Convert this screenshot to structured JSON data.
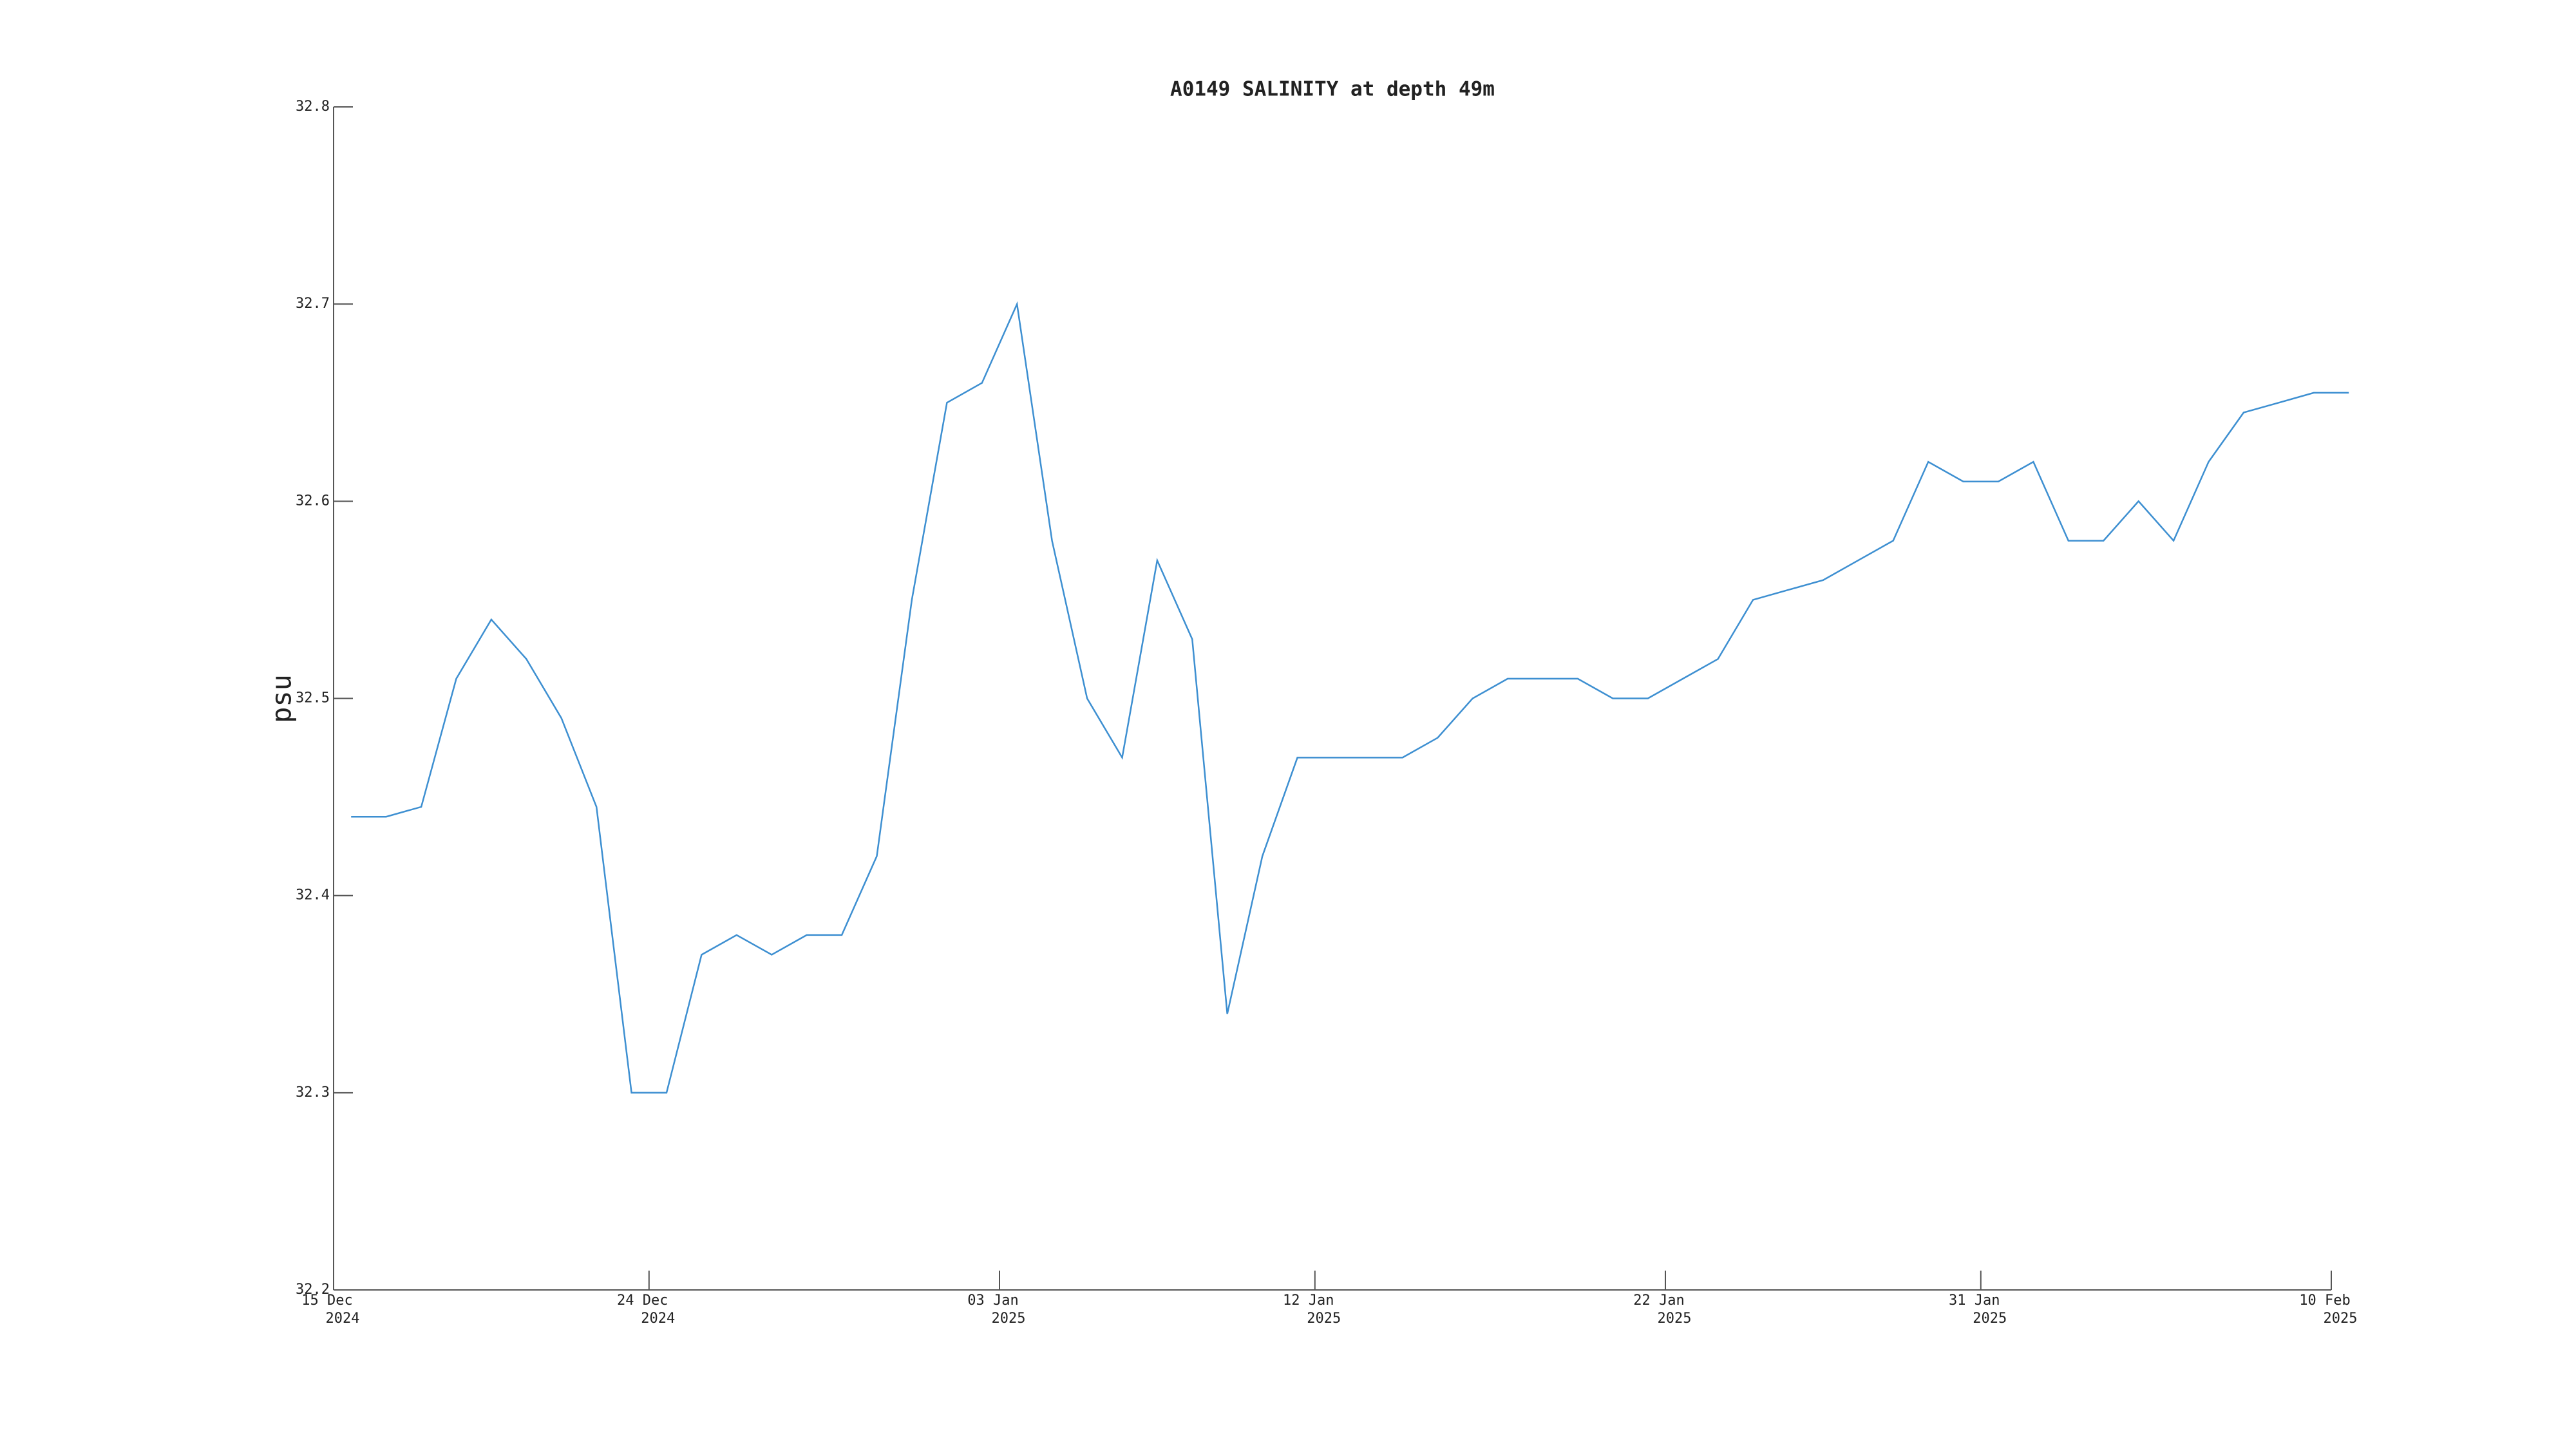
{
  "chart_data": {
    "type": "line",
    "title": "A0149 SALINITY at depth 49m",
    "ylabel": "psu",
    "x": [
      "2024-12-15",
      "2024-12-16",
      "2024-12-17",
      "2024-12-18",
      "2024-12-19",
      "2024-12-20",
      "2024-12-21",
      "2024-12-22",
      "2024-12-23",
      "2024-12-24",
      "2024-12-25",
      "2024-12-26",
      "2024-12-27",
      "2024-12-28",
      "2024-12-29",
      "2024-12-30",
      "2024-12-31",
      "2025-01-01",
      "2025-01-02",
      "2025-01-03",
      "2025-01-04",
      "2025-01-05",
      "2025-01-06",
      "2025-01-07",
      "2025-01-08",
      "2025-01-09",
      "2025-01-10",
      "2025-01-11",
      "2025-01-12",
      "2025-01-13",
      "2025-01-14",
      "2025-01-15",
      "2025-01-16",
      "2025-01-17",
      "2025-01-18",
      "2025-01-19",
      "2025-01-20",
      "2025-01-21",
      "2025-01-22",
      "2025-01-23",
      "2025-01-24",
      "2025-01-25",
      "2025-01-26",
      "2025-01-27",
      "2025-01-28",
      "2025-01-29",
      "2025-01-30",
      "2025-01-31",
      "2025-02-01",
      "2025-02-02",
      "2025-02-03",
      "2025-02-04",
      "2025-02-05",
      "2025-02-06",
      "2025-02-07",
      "2025-02-08",
      "2025-02-09",
      "2025-02-10"
    ],
    "series": [
      {
        "color": "#3d8fd1",
        "values": [
          32.44,
          32.44,
          32.445,
          32.51,
          32.54,
          32.52,
          32.49,
          32.445,
          32.3,
          32.3,
          32.37,
          32.38,
          32.37,
          32.38,
          32.38,
          32.42,
          32.55,
          32.65,
          32.66,
          32.7,
          32.58,
          32.5,
          32.47,
          32.57,
          32.53,
          32.34,
          32.42,
          32.47,
          32.47,
          32.47,
          32.47,
          32.48,
          32.5,
          32.51,
          32.51,
          32.51,
          32.5,
          32.5,
          32.51,
          32.52,
          32.55,
          32.555,
          32.56,
          32.57,
          32.58,
          32.62,
          32.61,
          32.61,
          32.62,
          32.58,
          32.58,
          32.6,
          32.58,
          32.62,
          32.645,
          32.65,
          32.655,
          32.655
        ]
      }
    ],
    "xlim": [
      "2024-12-15",
      "2025-02-10"
    ],
    "xticks": [
      {
        "value": "2024-12-15",
        "label": [
          "15 Dec",
          "2024"
        ]
      },
      {
        "value": "2024-12-24",
        "label": [
          "24 Dec",
          "2024"
        ]
      },
      {
        "value": "2025-01-03",
        "label": [
          "03 Jan",
          "2025"
        ]
      },
      {
        "value": "2025-01-12",
        "label": [
          "12 Jan",
          "2025"
        ]
      },
      {
        "value": "2025-01-22",
        "label": [
          "22 Jan",
          "2025"
        ]
      },
      {
        "value": "2025-01-31",
        "label": [
          "31 Jan",
          "2025"
        ]
      },
      {
        "value": "2025-02-10",
        "label": [
          "10 Feb",
          "2025"
        ]
      }
    ],
    "ylim": [
      32.2,
      32.8
    ],
    "yticks": [
      32.2,
      32.3,
      32.4,
      32.5,
      32.6,
      32.7,
      32.8
    ]
  }
}
